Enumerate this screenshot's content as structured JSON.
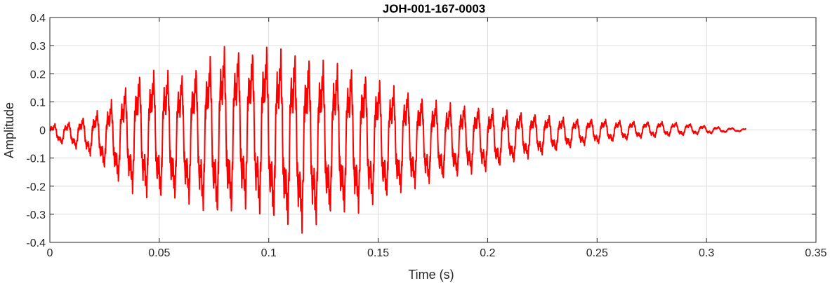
{
  "chart_data": {
    "type": "line",
    "title": "JOH-001-167-0003",
    "xlabel": "Time (s)",
    "ylabel": "Amplitude",
    "xlim": [
      0,
      0.35
    ],
    "ylim": [
      -0.4,
      0.4
    ],
    "grid": true,
    "x_ticks": [
      0,
      0.05,
      0.1,
      0.15,
      0.2,
      0.25,
      0.3,
      0.35
    ],
    "x_tick_labels": [
      "0",
      "0.05",
      "0.1",
      "0.15",
      "0.2",
      "0.25",
      "0.3",
      "0.35"
    ],
    "y_ticks": [
      -0.4,
      -0.3,
      -0.2,
      -0.1,
      0,
      0.1,
      0.2,
      0.3,
      0.4
    ],
    "y_tick_labels": [
      "-0.4",
      "-0.3",
      "-0.2",
      "-0.1",
      "0",
      "0.1",
      "0.2",
      "0.3",
      "0.4"
    ],
    "line_color": "#ff0000",
    "series": [
      {
        "duration": 0.318,
        "x": [
          0,
          0.01,
          0.02,
          0.03,
          0.04,
          0.05,
          0.06,
          0.07,
          0.078,
          0.09,
          0.1,
          0.11,
          0.116,
          0.13,
          0.14,
          0.15,
          0.16,
          0.17,
          0.18,
          0.19,
          0.2,
          0.21,
          0.22,
          0.23,
          0.24,
          0.25,
          0.26,
          0.27,
          0.28,
          0.29,
          0.3,
          0.31,
          0.318
        ],
        "upper": [
          0.02,
          0.03,
          0.06,
          0.12,
          0.2,
          0.22,
          0.2,
          0.24,
          0.3,
          0.28,
          0.3,
          0.28,
          0.27,
          0.24,
          0.22,
          0.18,
          0.15,
          0.12,
          0.1,
          0.09,
          0.08,
          0.07,
          0.06,
          0.05,
          0.04,
          0.04,
          0.035,
          0.03,
          0.03,
          0.025,
          0.015,
          0.008,
          0.005
        ],
        "lower": [
          -0.04,
          -0.06,
          -0.1,
          -0.18,
          -0.24,
          -0.25,
          -0.25,
          -0.29,
          -0.31,
          -0.28,
          -0.32,
          -0.35,
          -0.37,
          -0.3,
          -0.3,
          -0.26,
          -0.23,
          -0.2,
          -0.18,
          -0.16,
          -0.15,
          -0.12,
          -0.1,
          -0.08,
          -0.06,
          -0.05,
          -0.04,
          -0.03,
          -0.025,
          -0.02,
          -0.015,
          -0.008,
          -0.005
        ]
      }
    ]
  }
}
